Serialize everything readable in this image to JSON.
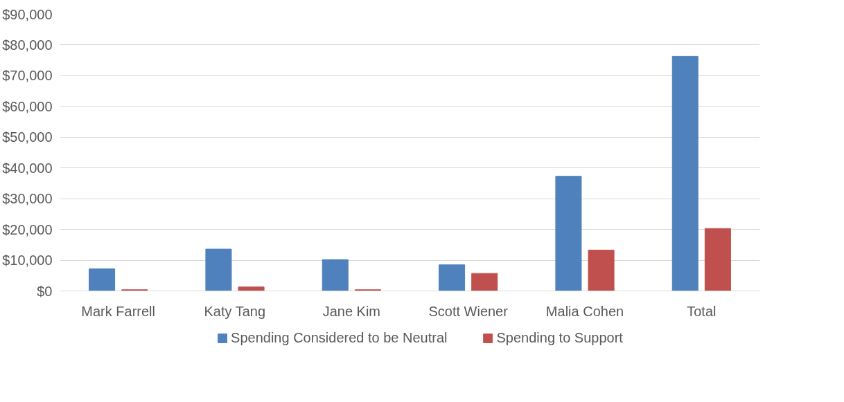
{
  "chart_data": {
    "type": "bar",
    "categories": [
      "Mark Farrell",
      "Katy Tang",
      "Jane Kim",
      "Scott Wiener",
      "Malia Cohen",
      "Total"
    ],
    "series": [
      {
        "name": "Spending Considered to be Neutral",
        "color": "#4f81bd",
        "values": [
          7200,
          13600,
          10200,
          8500,
          37300,
          76300
        ]
      },
      {
        "name": "Spending to Support",
        "color": "#c0504d",
        "values": [
          400,
          1300,
          400,
          5700,
          13300,
          20300
        ]
      }
    ],
    "ylim": [
      0,
      90000
    ],
    "yticks": [
      {
        "value": 0,
        "label": "$0"
      },
      {
        "value": 10000,
        "label": "$10,000"
      },
      {
        "value": 20000,
        "label": "$20,000"
      },
      {
        "value": 30000,
        "label": "$30,000"
      },
      {
        "value": 40000,
        "label": "$40,000"
      },
      {
        "value": 50000,
        "label": "$50,000"
      },
      {
        "value": 60000,
        "label": "$60,000"
      },
      {
        "value": 70000,
        "label": "$70,000"
      },
      {
        "value": 80000,
        "label": "$80,000"
      },
      {
        "value": 90000,
        "label": "$90,000"
      }
    ],
    "grid": "y",
    "legend": "bottom"
  }
}
